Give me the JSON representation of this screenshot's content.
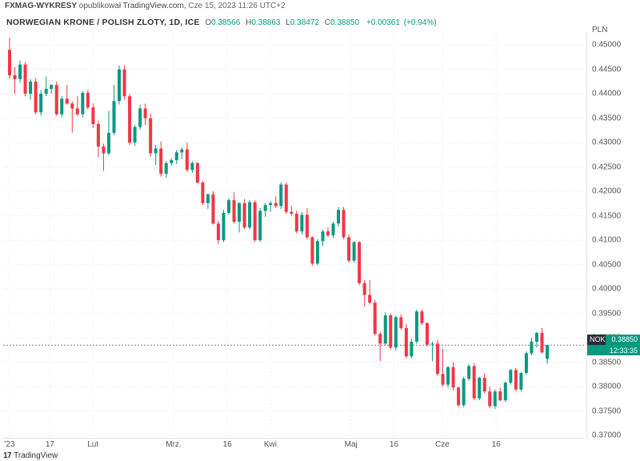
{
  "header": {
    "publisher": "FXMAG-WYKRESY",
    "publish_verb": "opublikował",
    "site": "TradingView.com",
    "timestamp": "Cze 15, 2023 11:26 UTC+2"
  },
  "info": {
    "symbol_long": "NORWEGIAN KRONE / POLISH ZLOTY",
    "interval": "1D",
    "exchange": "ICE",
    "o_label": "O",
    "o_value": "0.38566",
    "h_label": "H",
    "h_value": "0.38863",
    "l_label": "L",
    "l_value": "0.38472",
    "c_label": "C",
    "c_value": "0.38850",
    "change_abs": "+0.00361",
    "change_pct": "(+0.94%)",
    "ohlc_color": "#089981"
  },
  "axis": {
    "y_unit": "PLN",
    "y_min": 0.37,
    "y_max": 0.452,
    "y_ticks": [
      0.45,
      0.445,
      0.44,
      0.435,
      0.43,
      0.425,
      0.42,
      0.415,
      0.41,
      0.405,
      0.4,
      0.395,
      0.39,
      0.385,
      0.38,
      0.375,
      0.37
    ],
    "x_labels": [
      {
        "t": 0.0,
        "text": "'23"
      },
      {
        "t": 0.075,
        "text": "17"
      },
      {
        "t": 0.155,
        "text": "Lut"
      },
      {
        "t": 0.305,
        "text": "Mrz."
      },
      {
        "t": 0.405,
        "text": "16"
      },
      {
        "t": 0.485,
        "text": "Kwi"
      },
      {
        "t": 0.635,
        "text": "Maj"
      },
      {
        "t": 0.715,
        "text": "16"
      },
      {
        "t": 0.805,
        "text": "Cze"
      },
      {
        "t": 0.905,
        "text": "16"
      }
    ]
  },
  "live": {
    "line_value": 0.3885,
    "symbol_tag": "NOKPLN",
    "price_tag": "0.38850",
    "countdown": "12:33:35",
    "tag_color": "#089981"
  },
  "footer": {
    "logo": "17",
    "brand": "TradingView"
  },
  "style": {
    "up_color": "#089981",
    "down_color": "#f23645",
    "grid_color": "#e8e8e8",
    "wick_width": 1,
    "body_halfwidth": 2.0
  },
  "candles": [
    {
      "o": 0.449,
      "h": 0.4515,
      "l": 0.443,
      "c": 0.4438
    },
    {
      "o": 0.4438,
      "h": 0.4455,
      "l": 0.44,
      "c": 0.443
    },
    {
      "o": 0.443,
      "h": 0.4468,
      "l": 0.4422,
      "c": 0.446
    },
    {
      "o": 0.446,
      "h": 0.4465,
      "l": 0.4395,
      "c": 0.44
    },
    {
      "o": 0.44,
      "h": 0.443,
      "l": 0.4388,
      "c": 0.4425
    },
    {
      "o": 0.4425,
      "h": 0.4432,
      "l": 0.4358,
      "c": 0.4362
    },
    {
      "o": 0.4362,
      "h": 0.4408,
      "l": 0.4355,
      "c": 0.44
    },
    {
      "o": 0.44,
      "h": 0.4435,
      "l": 0.4395,
      "c": 0.441
    },
    {
      "o": 0.441,
      "h": 0.442,
      "l": 0.44,
      "c": 0.4418
    },
    {
      "o": 0.4418,
      "h": 0.4425,
      "l": 0.4355,
      "c": 0.4358
    },
    {
      "o": 0.4358,
      "h": 0.4395,
      "l": 0.4352,
      "c": 0.439
    },
    {
      "o": 0.439,
      "h": 0.4418,
      "l": 0.4378,
      "c": 0.438
    },
    {
      "o": 0.438,
      "h": 0.4385,
      "l": 0.432,
      "c": 0.437
    },
    {
      "o": 0.437,
      "h": 0.4395,
      "l": 0.4354,
      "c": 0.4358
    },
    {
      "o": 0.4358,
      "h": 0.4405,
      "l": 0.4352,
      "c": 0.4402
    },
    {
      "o": 0.4402,
      "h": 0.4408,
      "l": 0.4368,
      "c": 0.4372
    },
    {
      "o": 0.4372,
      "h": 0.438,
      "l": 0.433,
      "c": 0.4338
    },
    {
      "o": 0.4338,
      "h": 0.4345,
      "l": 0.427,
      "c": 0.4292
    },
    {
      "o": 0.4292,
      "h": 0.4298,
      "l": 0.4242,
      "c": 0.4278
    },
    {
      "o": 0.4278,
      "h": 0.4365,
      "l": 0.4274,
      "c": 0.432
    },
    {
      "o": 0.432,
      "h": 0.4418,
      "l": 0.4315,
      "c": 0.4385
    },
    {
      "o": 0.4385,
      "h": 0.4458,
      "l": 0.4378,
      "c": 0.445
    },
    {
      "o": 0.445,
      "h": 0.4458,
      "l": 0.4388,
      "c": 0.4395
    },
    {
      "o": 0.4395,
      "h": 0.44,
      "l": 0.4295,
      "c": 0.43
    },
    {
      "o": 0.43,
      "h": 0.4336,
      "l": 0.4293,
      "c": 0.4332
    },
    {
      "o": 0.4332,
      "h": 0.4378,
      "l": 0.4326,
      "c": 0.437
    },
    {
      "o": 0.437,
      "h": 0.438,
      "l": 0.4336,
      "c": 0.435
    },
    {
      "o": 0.435,
      "h": 0.436,
      "l": 0.4272,
      "c": 0.4278
    },
    {
      "o": 0.4278,
      "h": 0.4295,
      "l": 0.4254,
      "c": 0.4288
    },
    {
      "o": 0.4288,
      "h": 0.4302,
      "l": 0.423,
      "c": 0.4236
    },
    {
      "o": 0.4236,
      "h": 0.4262,
      "l": 0.4228,
      "c": 0.4258
    },
    {
      "o": 0.4258,
      "h": 0.4268,
      "l": 0.4252,
      "c": 0.4264
    },
    {
      "o": 0.4264,
      "h": 0.4285,
      "l": 0.4256,
      "c": 0.428
    },
    {
      "o": 0.428,
      "h": 0.429,
      "l": 0.4266,
      "c": 0.4286
    },
    {
      "o": 0.4286,
      "h": 0.43,
      "l": 0.424,
      "c": 0.4244
    },
    {
      "o": 0.4244,
      "h": 0.4262,
      "l": 0.4238,
      "c": 0.4258
    },
    {
      "o": 0.4258,
      "h": 0.426,
      "l": 0.4216,
      "c": 0.4218
    },
    {
      "o": 0.4218,
      "h": 0.4222,
      "l": 0.4172,
      "c": 0.4176
    },
    {
      "o": 0.4176,
      "h": 0.4196,
      "l": 0.4164,
      "c": 0.4194
    },
    {
      "o": 0.4194,
      "h": 0.42,
      "l": 0.4132,
      "c": 0.4134
    },
    {
      "o": 0.4134,
      "h": 0.414,
      "l": 0.4092,
      "c": 0.41
    },
    {
      "o": 0.41,
      "h": 0.4162,
      "l": 0.4096,
      "c": 0.4156
    },
    {
      "o": 0.4156,
      "h": 0.4186,
      "l": 0.4152,
      "c": 0.4182
    },
    {
      "o": 0.4182,
      "h": 0.4198,
      "l": 0.4134,
      "c": 0.4138
    },
    {
      "o": 0.4138,
      "h": 0.4178,
      "l": 0.4116,
      "c": 0.4176
    },
    {
      "o": 0.4176,
      "h": 0.4184,
      "l": 0.4122,
      "c": 0.4126
    },
    {
      "o": 0.4126,
      "h": 0.4182,
      "l": 0.4122,
      "c": 0.4178
    },
    {
      "o": 0.4178,
      "h": 0.4182,
      "l": 0.4096,
      "c": 0.41
    },
    {
      "o": 0.41,
      "h": 0.4166,
      "l": 0.4096,
      "c": 0.416
    },
    {
      "o": 0.416,
      "h": 0.4176,
      "l": 0.4148,
      "c": 0.4172
    },
    {
      "o": 0.4172,
      "h": 0.418,
      "l": 0.4158,
      "c": 0.4176
    },
    {
      "o": 0.4176,
      "h": 0.419,
      "l": 0.4166,
      "c": 0.417
    },
    {
      "o": 0.417,
      "h": 0.4218,
      "l": 0.4164,
      "c": 0.4214
    },
    {
      "o": 0.4214,
      "h": 0.4218,
      "l": 0.4154,
      "c": 0.4158
    },
    {
      "o": 0.4158,
      "h": 0.417,
      "l": 0.415,
      "c": 0.4154
    },
    {
      "o": 0.4154,
      "h": 0.416,
      "l": 0.4114,
      "c": 0.4118
    },
    {
      "o": 0.4118,
      "h": 0.4158,
      "l": 0.4112,
      "c": 0.4152
    },
    {
      "o": 0.4152,
      "h": 0.4166,
      "l": 0.4102,
      "c": 0.4106
    },
    {
      "o": 0.4106,
      "h": 0.4108,
      "l": 0.4048,
      "c": 0.4052
    },
    {
      "o": 0.4052,
      "h": 0.4102,
      "l": 0.4048,
      "c": 0.4098
    },
    {
      "o": 0.4098,
      "h": 0.4122,
      "l": 0.4088,
      "c": 0.4118
    },
    {
      "o": 0.4118,
      "h": 0.4126,
      "l": 0.4106,
      "c": 0.411
    },
    {
      "o": 0.411,
      "h": 0.4138,
      "l": 0.4104,
      "c": 0.4134
    },
    {
      "o": 0.4134,
      "h": 0.4168,
      "l": 0.4128,
      "c": 0.4162
    },
    {
      "o": 0.4162,
      "h": 0.4168,
      "l": 0.4102,
      "c": 0.4106
    },
    {
      "o": 0.4106,
      "h": 0.4112,
      "l": 0.4054,
      "c": 0.4058
    },
    {
      "o": 0.4058,
      "h": 0.4098,
      "l": 0.4054,
      "c": 0.4096
    },
    {
      "o": 0.4096,
      "h": 0.4098,
      "l": 0.4008,
      "c": 0.4012
    },
    {
      "o": 0.4012,
      "h": 0.4018,
      "l": 0.3964,
      "c": 0.3988
    },
    {
      "o": 0.3988,
      "h": 0.4018,
      "l": 0.3968,
      "c": 0.3972
    },
    {
      "o": 0.3972,
      "h": 0.3978,
      "l": 0.3904,
      "c": 0.3908
    },
    {
      "o": 0.3908,
      "h": 0.3912,
      "l": 0.3852,
      "c": 0.3888
    },
    {
      "o": 0.3888,
      "h": 0.3952,
      "l": 0.3884,
      "c": 0.3946
    },
    {
      "o": 0.3946,
      "h": 0.395,
      "l": 0.3876,
      "c": 0.388
    },
    {
      "o": 0.388,
      "h": 0.3946,
      "l": 0.3874,
      "c": 0.3942
    },
    {
      "o": 0.3942,
      "h": 0.3948,
      "l": 0.3916,
      "c": 0.392
    },
    {
      "o": 0.392,
      "h": 0.3928,
      "l": 0.3858,
      "c": 0.3862
    },
    {
      "o": 0.3862,
      "h": 0.3898,
      "l": 0.3858,
      "c": 0.3892
    },
    {
      "o": 0.3892,
      "h": 0.3958,
      "l": 0.3888,
      "c": 0.3954
    },
    {
      "o": 0.3954,
      "h": 0.3958,
      "l": 0.3926,
      "c": 0.393
    },
    {
      "o": 0.393,
      "h": 0.3932,
      "l": 0.3882,
      "c": 0.3886
    },
    {
      "o": 0.3886,
      "h": 0.3892,
      "l": 0.3852,
      "c": 0.3888
    },
    {
      "o": 0.3888,
      "h": 0.3896,
      "l": 0.3822,
      "c": 0.3826
    },
    {
      "o": 0.3826,
      "h": 0.3878,
      "l": 0.38,
      "c": 0.3804
    },
    {
      "o": 0.3804,
      "h": 0.3842,
      "l": 0.3798,
      "c": 0.384
    },
    {
      "o": 0.384,
      "h": 0.385,
      "l": 0.3792,
      "c": 0.3798
    },
    {
      "o": 0.3798,
      "h": 0.38,
      "l": 0.3758,
      "c": 0.3762
    },
    {
      "o": 0.3762,
      "h": 0.382,
      "l": 0.3758,
      "c": 0.3816
    },
    {
      "o": 0.3816,
      "h": 0.3846,
      "l": 0.3812,
      "c": 0.3842
    },
    {
      "o": 0.3842,
      "h": 0.3848,
      "l": 0.3772,
      "c": 0.3776
    },
    {
      "o": 0.3776,
      "h": 0.382,
      "l": 0.3772,
      "c": 0.3818
    },
    {
      "o": 0.3818,
      "h": 0.3828,
      "l": 0.3786,
      "c": 0.379
    },
    {
      "o": 0.379,
      "h": 0.38,
      "l": 0.3756,
      "c": 0.376
    },
    {
      "o": 0.376,
      "h": 0.3794,
      "l": 0.3754,
      "c": 0.379
    },
    {
      "o": 0.379,
      "h": 0.3798,
      "l": 0.377,
      "c": 0.3772
    },
    {
      "o": 0.3772,
      "h": 0.381,
      "l": 0.3768,
      "c": 0.3808
    },
    {
      "o": 0.3808,
      "h": 0.3836,
      "l": 0.3804,
      "c": 0.3834
    },
    {
      "o": 0.3834,
      "h": 0.3838,
      "l": 0.379,
      "c": 0.3794
    },
    {
      "o": 0.3794,
      "h": 0.383,
      "l": 0.379,
      "c": 0.3828
    },
    {
      "o": 0.3828,
      "h": 0.3872,
      "l": 0.3824,
      "c": 0.3868
    },
    {
      "o": 0.3868,
      "h": 0.39,
      "l": 0.3864,
      "c": 0.3892
    },
    {
      "o": 0.3892,
      "h": 0.3912,
      "l": 0.388,
      "c": 0.391
    },
    {
      "o": 0.391,
      "h": 0.392,
      "l": 0.3868,
      "c": 0.387
    },
    {
      "o": 0.3857,
      "h": 0.3886,
      "l": 0.3847,
      "c": 0.3885
    }
  ]
}
